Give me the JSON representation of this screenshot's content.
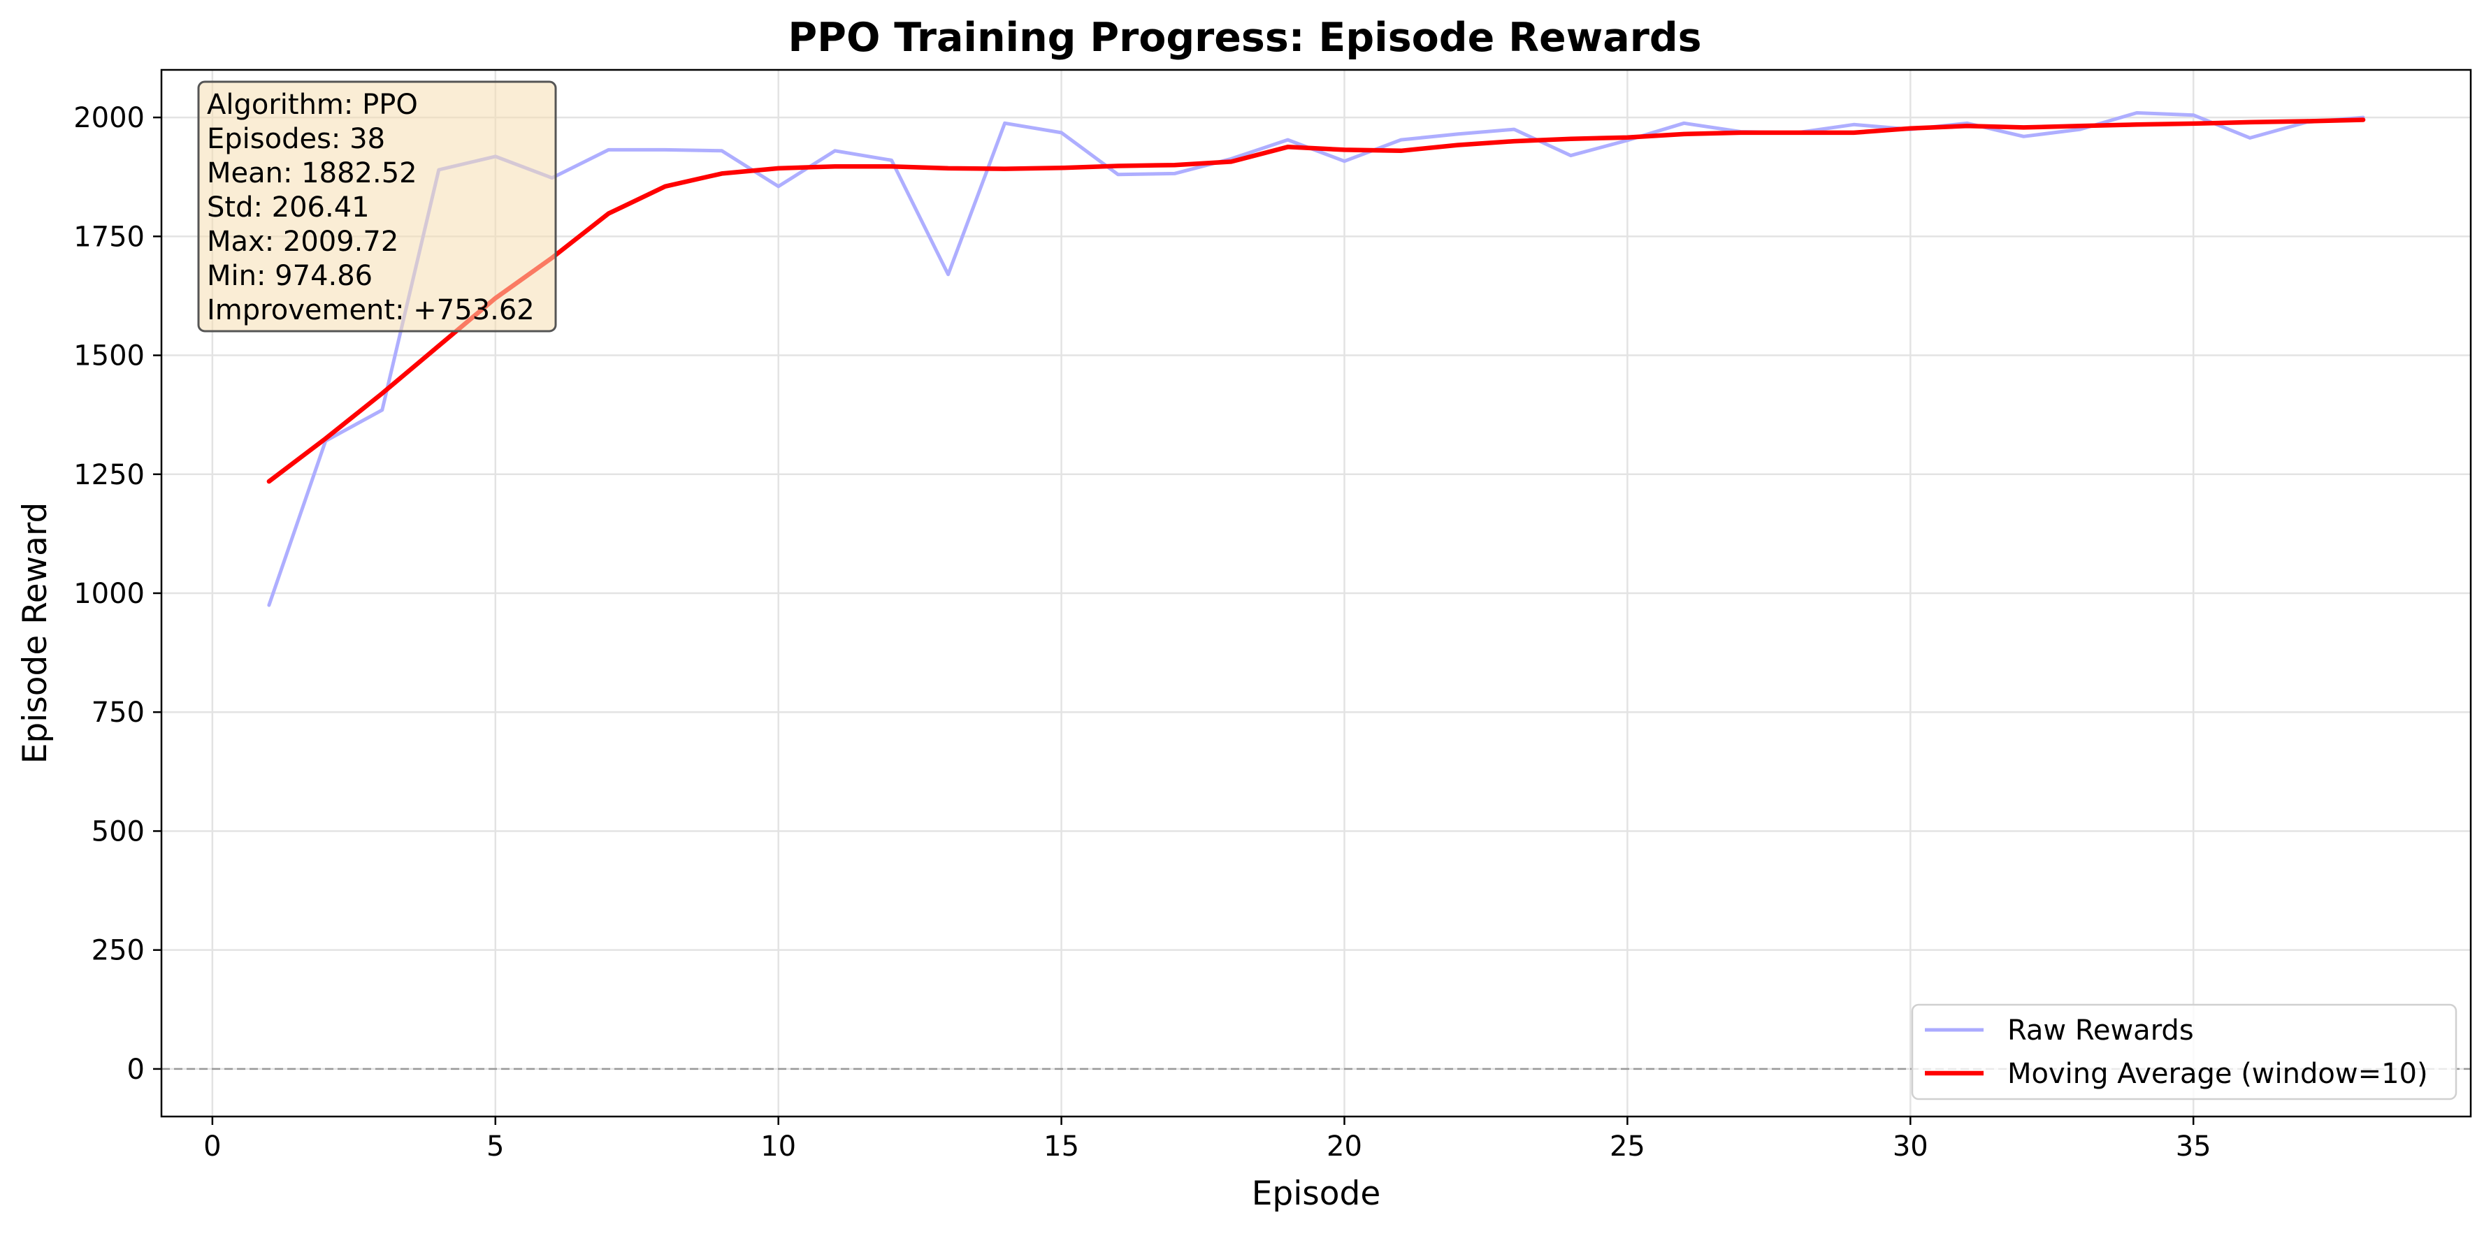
{
  "chart_data": {
    "type": "line",
    "title": "PPO Training Progress: Episode Rewards",
    "xlabel": "Episode",
    "ylabel": "Episode Reward",
    "xlim": [
      -0.9,
      39.9
    ],
    "ylim": [
      -100,
      2100
    ],
    "x_ticks": [
      0,
      5,
      10,
      15,
      20,
      25,
      30,
      35
    ],
    "y_ticks": [
      0,
      250,
      500,
      750,
      1000,
      1250,
      1500,
      1750,
      2000
    ],
    "grid": true,
    "legend_position": "lower-right",
    "reference_line": {
      "y": 0,
      "style": "dashed",
      "color": "#808080"
    },
    "x": [
      1,
      2,
      3,
      4,
      5,
      6,
      7,
      8,
      9,
      10,
      11,
      12,
      13,
      14,
      15,
      16,
      17,
      18,
      19,
      20,
      21,
      22,
      23,
      24,
      25,
      26,
      27,
      28,
      29,
      30,
      31,
      32,
      33,
      34,
      35,
      36,
      37,
      38
    ],
    "series": [
      {
        "name": "Raw Rewards",
        "color": "#aaaaff",
        "values": [
          974.86,
          1320,
          1385,
          1890,
          1918,
          1873,
          1932,
          1932,
          1930,
          1855,
          1930,
          1910,
          1670,
          1988,
          1968,
          1880,
          1882,
          1913,
          1953,
          1908,
          1953,
          1965,
          1975,
          1920,
          1952,
          1988,
          1970,
          1968,
          1985,
          1975,
          1988,
          1960,
          1975,
          2009.72,
          2005,
          1957,
          1990,
          2000
        ]
      },
      {
        "name": "Moving Average (window=10)",
        "color": "#ff0000",
        "values": [
          1235,
          1325,
          1420,
          1520,
          1620,
          1705,
          1798,
          1855,
          1882,
          1893,
          1897,
          1897,
          1893,
          1892,
          1894,
          1898,
          1900,
          1907,
          1938,
          1932,
          1930,
          1942,
          1950,
          1955,
          1958,
          1965,
          1968,
          1968,
          1968,
          1977,
          1982,
          1979,
          1982,
          1985,
          1987,
          1990,
          1992,
          1995
        ]
      }
    ],
    "stats_box": {
      "lines": [
        "Algorithm: PPO",
        "Episodes: 38",
        "Mean: 1882.52",
        "Std: 206.41",
        "Max: 2009.72",
        "Min: 974.86",
        "Improvement: +753.62"
      ],
      "background": "#f5deb3"
    }
  }
}
